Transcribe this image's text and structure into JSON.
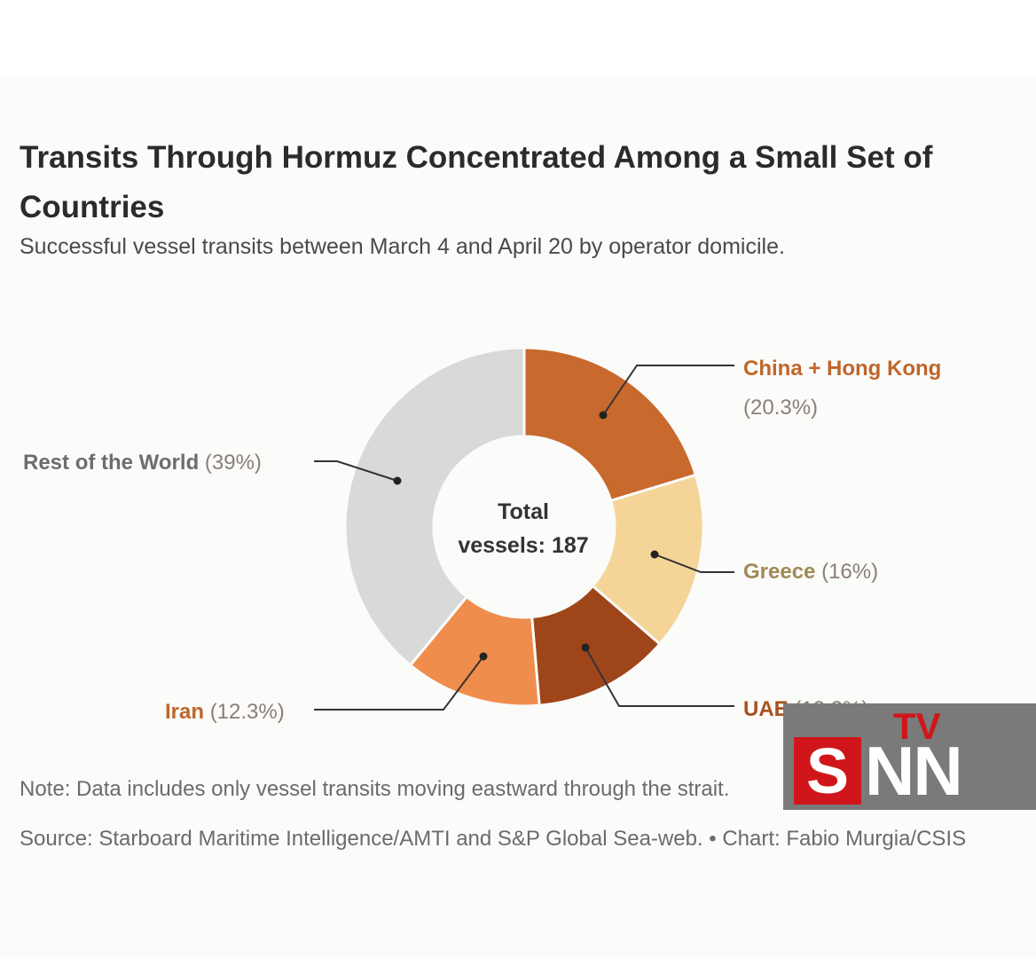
{
  "chart_data": {
    "type": "pie",
    "donut": true,
    "title": "Transits Through Hormuz Concentrated Among a Small Set of Countries",
    "subtitle": "Successful vessel transits between March 4 and April 20 by operator domicile.",
    "center_label_line1": "Total",
    "center_label_line2": "vessels: 187",
    "slices": [
      {
        "name": "China + Hong Kong",
        "percent_label": "(20.3%)",
        "value": 20.3,
        "color": "#c8692d"
      },
      {
        "name": "Greece",
        "percent_label": "(16%)",
        "value": 16.0,
        "color": "#f5d597"
      },
      {
        "name": "UAE",
        "percent_label": "(12.3%)",
        "value": 12.3,
        "color": "#9e4619"
      },
      {
        "name": "Iran",
        "percent_label": "(12.3%)",
        "value": 12.3,
        "color": "#ef8d4d"
      },
      {
        "name": "Rest of the World",
        "percent_label": "(39%)",
        "value": 39.0,
        "color": "#d9d9d9"
      }
    ],
    "note": "Note: Data includes only vessel transits moving eastward through the strait.",
    "source": "Source: Starboard Maritime Intelligence/AMTI and S&P Global Sea-web. • Chart: Fabio Murgia/CSIS"
  },
  "watermark": {
    "tv": "TV",
    "s": "S",
    "nn": "NN"
  }
}
